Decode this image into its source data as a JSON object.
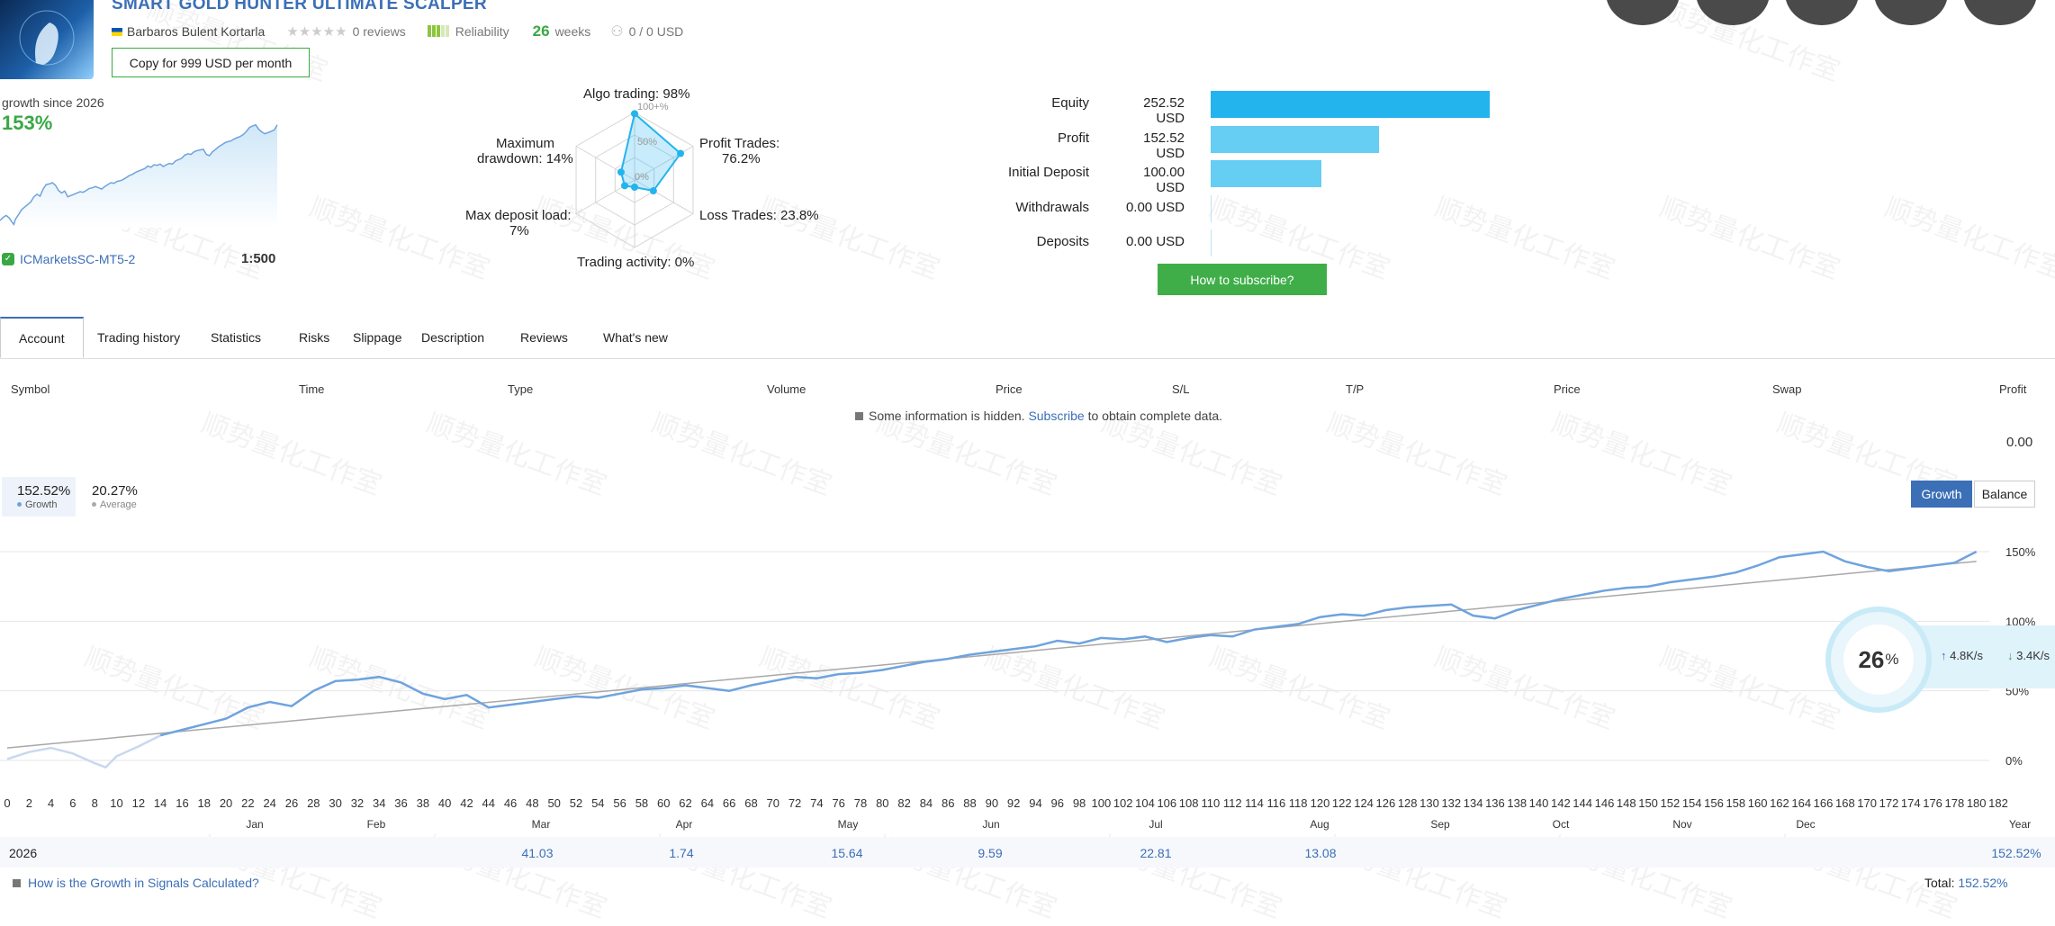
{
  "header": {
    "title": "SMART GOLD HUNTER ULTIMATE SCALPER",
    "author": "Barbaros Bulent Kortarla",
    "reviews": "0 reviews",
    "reliability_label": "Reliability",
    "weeks_value": "26",
    "weeks_label": "weeks",
    "subscribers": "0 / 0 USD",
    "copy_button": "Copy for 999 USD per month"
  },
  "growth_summary": {
    "label": "growth since 2026",
    "value": "153%",
    "broker": "ICMarketsSC-MT5-2",
    "leverage": "1:500"
  },
  "radar": {
    "algo": "Algo trading: 98%",
    "profit_trades_1": "Profit Trades:",
    "profit_trades_2": "76.2%",
    "loss_trades": "Loss Trades: 23.8%",
    "trading_activity": "Trading activity: 0%",
    "max_deposit_1": "Max deposit load:",
    "max_deposit_2": "7%",
    "max_drawdown_1": "Maximum",
    "max_drawdown_2": "drawdown: 14%",
    "ring_100": "100+%",
    "ring_50": "50%",
    "ring_0": "0%",
    "values": [
      0.98,
      0.76,
      0.24,
      0.0,
      0.07,
      0.14
    ]
  },
  "bars": [
    {
      "label": "Equity",
      "value": "252.52 USD",
      "amount": 252.52
    },
    {
      "label": "Profit",
      "value": "152.52 USD",
      "amount": 152.52
    },
    {
      "label": "Initial Deposit",
      "value": "100.00 USD",
      "amount": 100.0
    },
    {
      "label": "Withdrawals",
      "value": "0.00 USD",
      "amount": 0
    },
    {
      "label": "Deposits",
      "value": "0.00 USD",
      "amount": 0
    }
  ],
  "how_to_subscribe": "How to subscribe?",
  "tabs": [
    "Account",
    "Trading history",
    "Statistics",
    "Risks",
    "Slippage",
    "Description",
    "Reviews",
    "What's new"
  ],
  "table": {
    "columns": [
      "Symbol",
      "Time",
      "Type",
      "Volume",
      "Price",
      "S/L",
      "T/P",
      "Price",
      "Swap",
      "Profit"
    ],
    "hidden_prefix": "Some information is hidden.",
    "hidden_link": "Subscribe",
    "hidden_suffix": "to obtain complete data.",
    "profit_total": "0.00"
  },
  "legend": {
    "growth_value": "152.52%",
    "growth_label": "Growth",
    "average_value": "20.27%",
    "average_label": "Average"
  },
  "chart_buttons": {
    "growth": "Growth",
    "balance": "Balance"
  },
  "chart_data": {
    "type": "line",
    "x_ticks": [
      "0",
      "2",
      "4",
      "6",
      "8",
      "10",
      "12",
      "14",
      "16",
      "18",
      "20",
      "22",
      "24",
      "26",
      "28",
      "30",
      "32",
      "34",
      "36",
      "38",
      "40",
      "42",
      "44",
      "46",
      "48",
      "50",
      "52",
      "54",
      "56",
      "58",
      "60",
      "62",
      "64",
      "66",
      "68",
      "70",
      "72",
      "74",
      "76",
      "78",
      "80",
      "82",
      "84",
      "86",
      "88",
      "90",
      "92",
      "94",
      "96",
      "98",
      "100",
      "102",
      "104",
      "106",
      "108",
      "110",
      "112",
      "114",
      "116",
      "118",
      "120",
      "122",
      "124",
      "126",
      "128",
      "130",
      "132",
      "134",
      "136",
      "138",
      "140",
      "142",
      "144",
      "146",
      "148",
      "150",
      "152",
      "154",
      "156",
      "158",
      "160",
      "162",
      "164",
      "166",
      "168",
      "170",
      "172",
      "174",
      "176",
      "178",
      "180",
      "182"
    ],
    "y_ticks": [
      "0%",
      "50%",
      "100%",
      "150%"
    ],
    "ylim": [
      -10,
      165
    ],
    "xlim": [
      0,
      182
    ],
    "months": [
      "Jan",
      "Feb",
      "Mar",
      "Apr",
      "May",
      "Jun",
      "Jul",
      "Aug",
      "Sep",
      "Oct",
      "Nov",
      "Dec",
      "Year"
    ],
    "series": [
      {
        "x": [
          0,
          2,
          4,
          6,
          8,
          9,
          10,
          12,
          14,
          16,
          18,
          20,
          22,
          24,
          26,
          28,
          30,
          32,
          34,
          36,
          38,
          40,
          42,
          44,
          46,
          48,
          50,
          52,
          54,
          56,
          58,
          60,
          62,
          64,
          66,
          68,
          70,
          72,
          74,
          76,
          78,
          80,
          82,
          84,
          86,
          88,
          90,
          92,
          94,
          96,
          98,
          100,
          102,
          104,
          106,
          108,
          110,
          112,
          114,
          116,
          118,
          120,
          122,
          124,
          126,
          128,
          130,
          132,
          134,
          136,
          138,
          140,
          142,
          144,
          146,
          148,
          150,
          152,
          154,
          156,
          158,
          160,
          162,
          164,
          166,
          168,
          170,
          172,
          174,
          176,
          178,
          180
        ],
        "y": [
          1,
          6,
          9,
          5,
          -2,
          -5,
          3,
          10,
          18,
          22,
          26,
          30,
          38,
          42,
          39,
          50,
          57,
          58,
          60,
          56,
          48,
          44,
          47,
          38,
          40,
          42,
          44,
          46,
          45,
          48,
          51,
          52,
          54,
          52,
          50,
          54,
          57,
          60,
          59,
          62,
          63,
          65,
          68,
          71,
          73,
          76,
          78,
          80,
          82,
          86,
          84,
          88,
          87,
          89,
          85,
          88,
          90,
          89,
          94,
          96,
          98,
          103,
          105,
          104,
          108,
          110,
          111,
          112,
          104,
          102,
          108,
          112,
          116,
          119,
          122,
          124,
          125,
          128,
          130,
          132,
          135,
          140,
          146,
          148,
          150,
          143,
          139,
          136,
          138,
          140,
          142,
          150
        ]
      },
      {
        "x": [
          0,
          180
        ],
        "y": [
          9,
          143
        ]
      }
    ]
  },
  "year_row": {
    "year": "2026",
    "values": [
      "41.03",
      "1.74",
      "15.64",
      "9.59",
      "22.81",
      "13.08",
      "152.52%"
    ]
  },
  "footer": {
    "link": "How is the Growth in Signals Calculated?",
    "total_label": "Total:",
    "total_value": "152.52%"
  },
  "speed_widget": {
    "percent": "26",
    "percent_sign": "%",
    "up": "4.8K/s",
    "down": "3.4K/s"
  },
  "watermark": "顺势量化工作室",
  "colors": {
    "accent_blue": "#3b6fb6",
    "green": "#3fae49",
    "bar_dark": "#23b4ee",
    "bar_light": "#66cdf3",
    "line": "#6fa3de"
  }
}
